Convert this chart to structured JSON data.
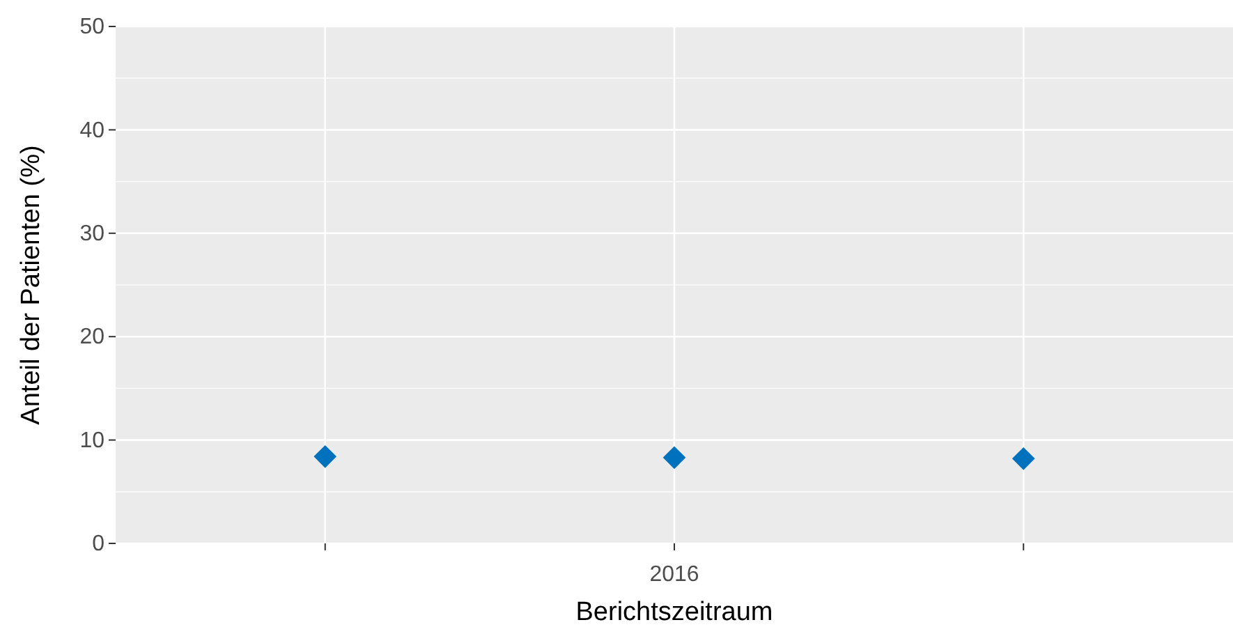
{
  "chart_data": {
    "type": "scatter",
    "xlabel": "Berichtszeitraum",
    "ylabel": "Anteil der Patienten (%)",
    "categories": [
      null,
      "2016",
      null
    ],
    "series": [
      {
        "color": "#0072bd",
        "values": [
          8.4,
          8.3,
          8.2
        ]
      }
    ],
    "ylim": [
      0,
      50
    ],
    "yticks": [
      0,
      10,
      20,
      30,
      40,
      50
    ],
    "grid": true,
    "marker": "diamond"
  }
}
